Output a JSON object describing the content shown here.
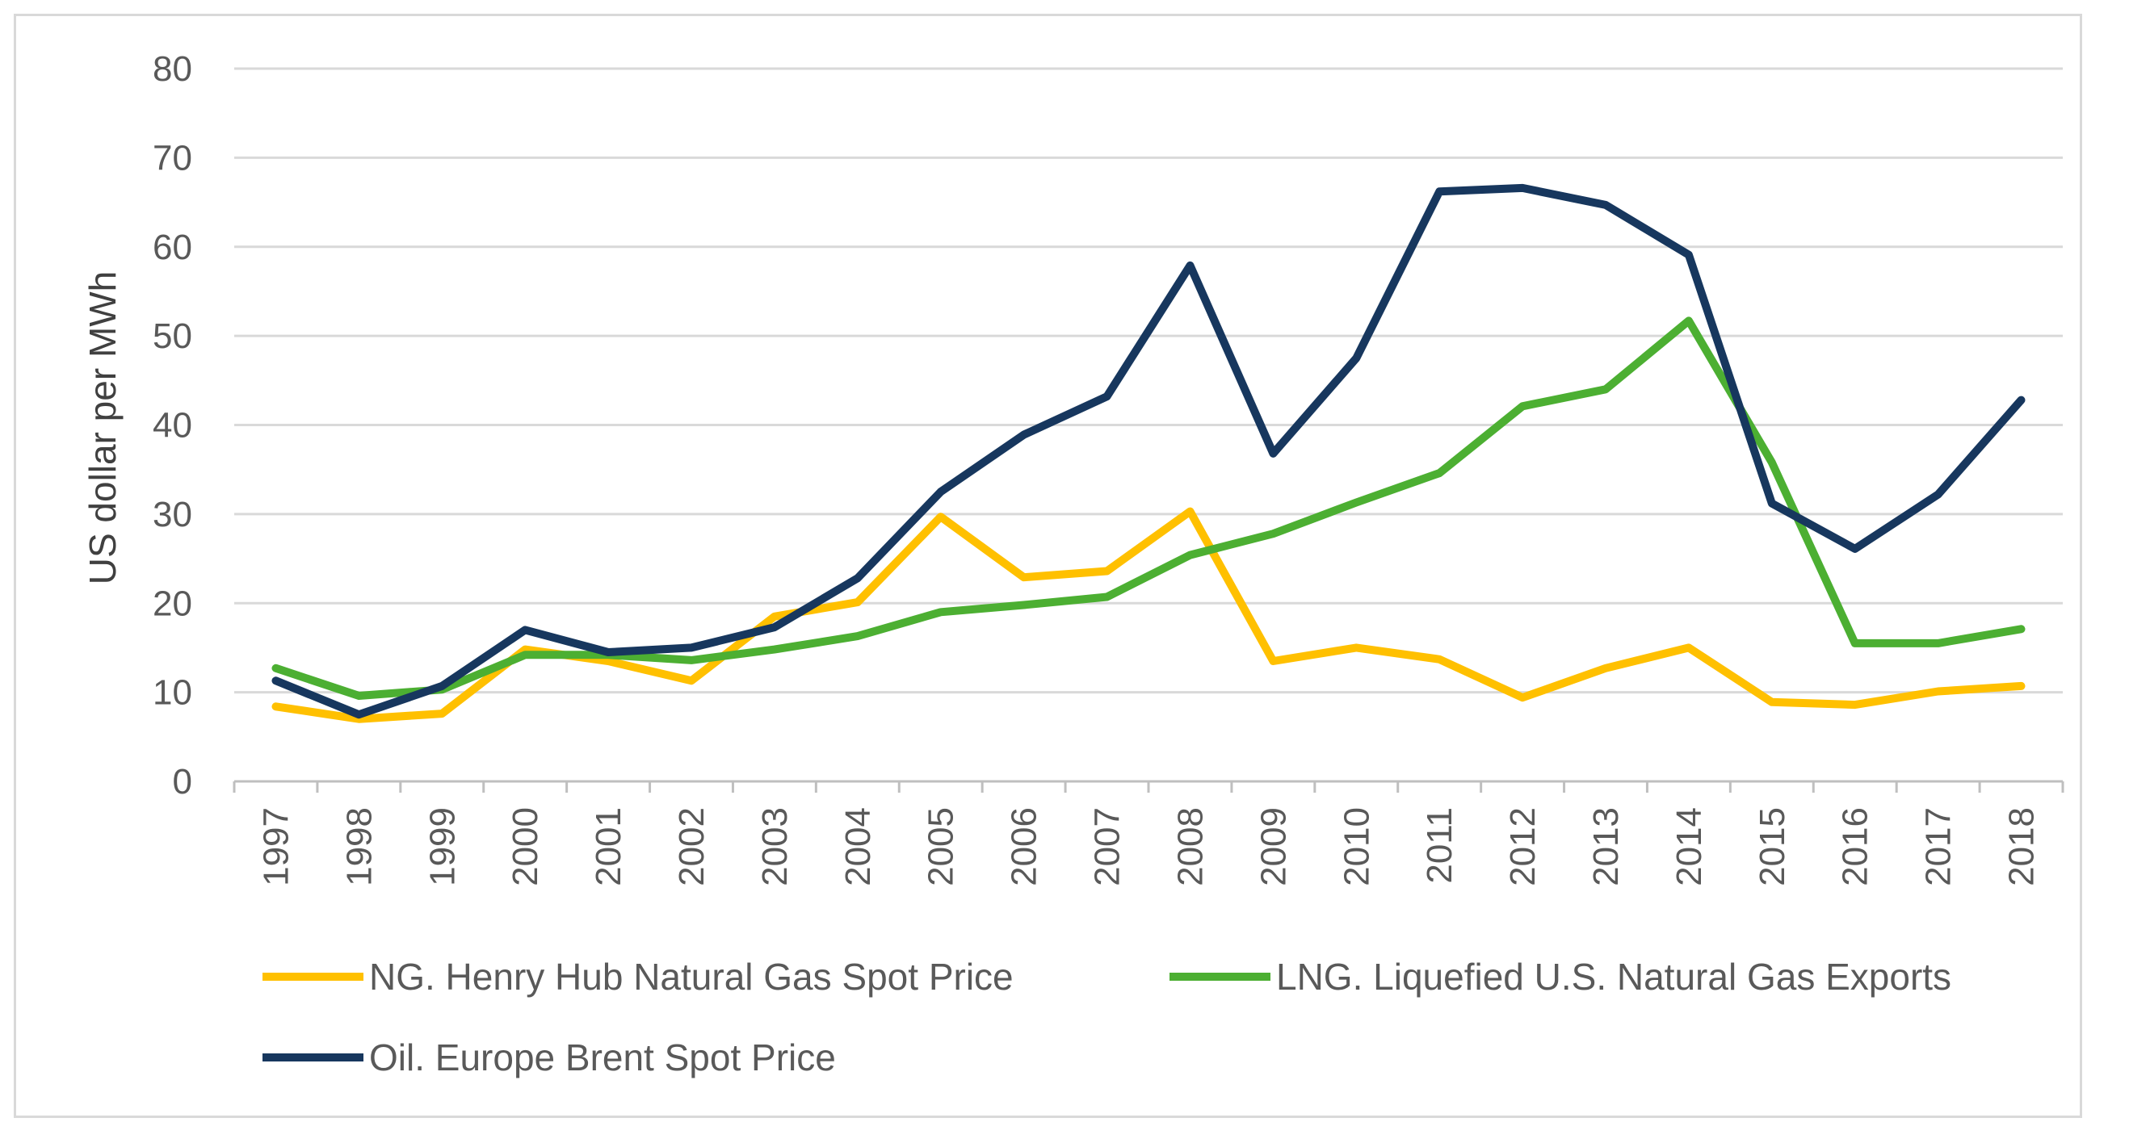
{
  "chart_data": {
    "type": "line",
    "title": "",
    "xlabel": "",
    "ylabel": "US dollar per MWh",
    "ylim": [
      0,
      80
    ],
    "yticks": [
      0,
      10,
      20,
      30,
      40,
      50,
      60,
      70,
      80
    ],
    "grid": "horizontal",
    "legend_position": "bottom",
    "categories": [
      "1997",
      "1998",
      "1999",
      "2000",
      "2001",
      "2002",
      "2003",
      "2004",
      "2005",
      "2006",
      "2007",
      "2008",
      "2009",
      "2010",
      "2011",
      "2012",
      "2013",
      "2014",
      "2015",
      "2016",
      "2017",
      "2018"
    ],
    "series": [
      {
        "name": "NG. Henry Hub Natural Gas Spot Price",
        "color": "#FFC000",
        "values": [
          8.4,
          7.0,
          7.6,
          14.8,
          13.5,
          11.3,
          18.5,
          20.1,
          29.7,
          22.9,
          23.6,
          30.3,
          13.5,
          15.0,
          13.7,
          9.4,
          12.7,
          15.0,
          8.9,
          8.6,
          10.1,
          10.7
        ]
      },
      {
        "name": "LNG. Liquefied U.S. Natural Gas Exports",
        "color": "#4CAF32",
        "values": [
          12.7,
          9.6,
          10.3,
          14.2,
          14.2,
          13.6,
          14.8,
          16.3,
          19.0,
          19.8,
          20.7,
          25.4,
          27.8,
          31.3,
          34.6,
          42.1,
          44.0,
          51.7,
          35.8,
          15.5,
          15.5,
          17.1
        ]
      },
      {
        "name": "Oil. Europe Brent Spot Price",
        "color": "#17375E",
        "values": [
          11.3,
          7.5,
          10.7,
          17.0,
          14.5,
          15.0,
          17.3,
          22.8,
          32.5,
          38.9,
          43.2,
          57.9,
          36.8,
          47.5,
          66.2,
          66.6,
          64.7,
          59.1,
          31.2,
          26.1,
          32.2,
          42.8
        ]
      }
    ]
  }
}
